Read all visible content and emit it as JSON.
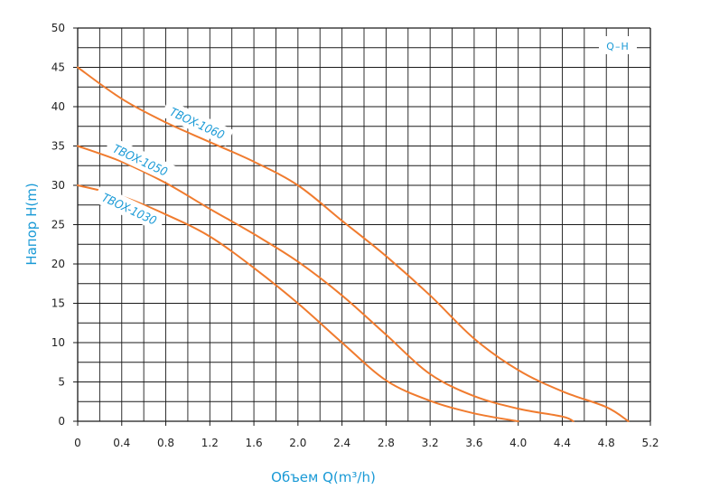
{
  "chart_data": {
    "type": "line",
    "xlabel": "Объем Q(m³/h)",
    "ylabel": "Напор H(m)",
    "xlim": [
      0,
      5.2
    ],
    "ylim": [
      0,
      50
    ],
    "x_ticks": [
      "0",
      "0.4",
      "0.8",
      "1.2",
      "1.6",
      "2.0",
      "2.4",
      "2.8",
      "3.2",
      "3.6",
      "4.0",
      "4.4",
      "4.8",
      "5.2"
    ],
    "y_ticks": [
      "0",
      "5",
      "10",
      "15",
      "20",
      "25",
      "30",
      "35",
      "40",
      "45",
      "50"
    ],
    "grid": true,
    "legend": {
      "label": "Q–H",
      "position": "top-right"
    },
    "colors": {
      "line": "#f07b2e",
      "text": "#1a9ad6",
      "grid": "#1a1a1a"
    },
    "series": [
      {
        "name": "TBOX-1060",
        "x": [
          0,
          0.4,
          0.8,
          1.2,
          1.6,
          2.0,
          2.4,
          2.8,
          3.2,
          3.6,
          4.0,
          4.4,
          4.8,
          5.0
        ],
        "y": [
          45,
          41,
          38,
          35.5,
          33,
          30,
          25.5,
          21,
          16,
          10.5,
          6.5,
          3.8,
          1.8,
          0
        ]
      },
      {
        "name": "TBOX-1050",
        "x": [
          0,
          0.4,
          0.8,
          1.2,
          1.6,
          2.0,
          2.4,
          2.8,
          3.2,
          3.6,
          4.0,
          4.4,
          4.5
        ],
        "y": [
          35,
          33,
          30.3,
          27,
          23.8,
          20.3,
          16,
          11,
          6,
          3.2,
          1.6,
          0.6,
          0
        ]
      },
      {
        "name": "TBOX-1030",
        "x": [
          0,
          0.4,
          0.8,
          1.2,
          1.6,
          2.0,
          2.4,
          2.8,
          3.2,
          3.6,
          4.0
        ],
        "y": [
          30,
          28.6,
          26.3,
          23.5,
          19.5,
          15,
          10,
          5.2,
          2.6,
          1.0,
          0
        ]
      }
    ]
  }
}
